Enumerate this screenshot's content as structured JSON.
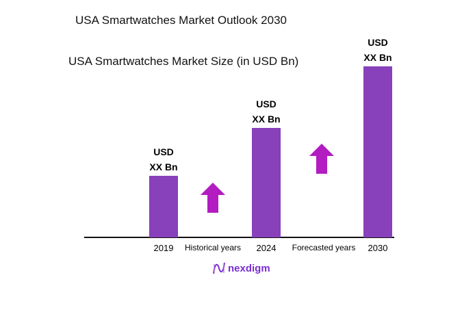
{
  "chart_data": {
    "type": "bar",
    "title": "USA Smartwatches Market  Outlook 2030",
    "subtitle": "USA Smartwatches Market  Size (in USD Bn)",
    "categories": [
      "2019",
      "2024",
      "2030"
    ],
    "values": [
      36,
      64,
      100
    ],
    "data_labels": [
      [
        "USD",
        "XX Bn"
      ],
      [
        "USD",
        "XX Bn"
      ],
      [
        "USD",
        "XX Bn"
      ]
    ],
    "period_labels": [
      "Historical years",
      "Forecasted years"
    ],
    "ylim": [
      0,
      100
    ],
    "grid": false,
    "xlabel": "",
    "ylabel": "",
    "colors": {
      "bar": "#8840bb",
      "arrow": "#b21cc0",
      "axis": "#111111"
    }
  },
  "logo": {
    "text": "nexdigm"
  }
}
